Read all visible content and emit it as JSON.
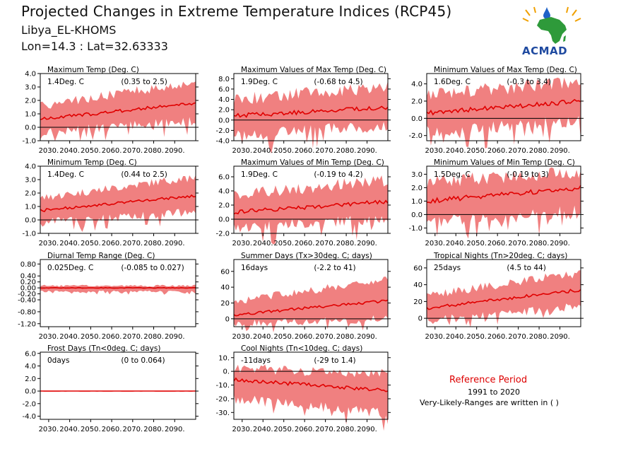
{
  "header": {
    "title": "Projected Changes in Extreme Temperature Indices (RCP45)",
    "location": "Libya_EL-KHOMS",
    "coords": "Lon=14.3 : Lat=32.63333",
    "logo_text": "ACMAD"
  },
  "reference": {
    "title": "Reference Period",
    "years": "1991 to 2020",
    "note": "Very-Likely-Ranges are written in ( )"
  },
  "colors": {
    "band": "#f08080",
    "median": "#e00000",
    "zero_line": "#000000"
  },
  "chart_data": [
    {
      "type": "area",
      "title": "Maximum Temp (Deg. C)",
      "value_label": "1.4Deg. C",
      "range_label": "(0.35 to 2.5)",
      "x_ticks": [
        "2030.",
        "2040.",
        "2050.",
        "2060.",
        "2070.",
        "2080.",
        "2090."
      ],
      "xlim": [
        2026,
        2100
      ],
      "y_ticks": [
        "4.0",
        "3.0",
        "2.0",
        "1.0",
        "0.0",
        "-1.0"
      ],
      "ylim": [
        -1.0,
        4.0
      ],
      "median_start": 0.6,
      "median_end": 1.8,
      "band_low_start": -0.4,
      "band_low_end": 0.5,
      "band_high_start": 1.6,
      "band_high_end": 3.4
    },
    {
      "type": "area",
      "title": "Maximum Values of Max Temp (Deg. C)",
      "value_label": "1.9Deg. C",
      "range_label": "(-0.68 to 4.5)",
      "x_ticks": [
        "2030.",
        "2040.",
        "2050.",
        "2060.",
        "2070.",
        "2080.",
        "2090."
      ],
      "xlim": [
        2026,
        2100
      ],
      "y_ticks": [
        "8.0",
        "6.0",
        "4.0",
        "2.0",
        "0.0",
        "-2.0",
        "-4.0"
      ],
      "ylim": [
        -4.0,
        9.0
      ],
      "median_start": 0.8,
      "median_end": 2.5,
      "band_low_start": -3.0,
      "band_low_end": -1.0,
      "band_high_start": 4.0,
      "band_high_end": 6.5
    },
    {
      "type": "area",
      "title": "Minimum Values of Max Temp (Deg. C)",
      "value_label": "1.6Deg. C",
      "range_label": "(-0.3 to 3.4)",
      "x_ticks": [
        "2030.",
        "2040.",
        "2050.",
        "2060.",
        "2070.",
        "2080.",
        "2090."
      ],
      "xlim": [
        2026,
        2100
      ],
      "y_ticks": [
        "4.0",
        "2.0",
        "0.0",
        "-2.0"
      ],
      "ylim": [
        -2.6,
        5.2
      ],
      "median_start": 0.6,
      "median_end": 2.0,
      "band_low_start": -1.5,
      "band_low_end": -0.3,
      "band_high_start": 2.8,
      "band_high_end": 4.2
    },
    {
      "type": "area",
      "title": "Minimum Temp (Deg. C)",
      "value_label": "1.4Deg. C",
      "range_label": "(0.44 to 2.5)",
      "x_ticks": [
        "2030.",
        "2040.",
        "2050.",
        "2060.",
        "2070.",
        "2080.",
        "2090."
      ],
      "xlim": [
        2026,
        2100
      ],
      "y_ticks": [
        "4.0",
        "3.0",
        "2.0",
        "1.0",
        "0.0",
        "-1.0"
      ],
      "ylim": [
        -1.0,
        4.0
      ],
      "median_start": 0.7,
      "median_end": 1.8,
      "band_low_start": -0.2,
      "band_low_end": 0.6,
      "band_high_start": 1.6,
      "band_high_end": 3.2
    },
    {
      "type": "area",
      "title": "Maximum Values of Min Temp (Deg. C)",
      "value_label": "1.9Deg. C",
      "range_label": "(-0.19 to 4.2)",
      "x_ticks": [
        "2030.",
        "2040.",
        "2050.",
        "2060.",
        "2070.",
        "2080.",
        "2090."
      ],
      "xlim": [
        2026,
        2100
      ],
      "y_ticks": [
        "6.0",
        "4.0",
        "2.0",
        "0.0",
        "-2.0"
      ],
      "ylim": [
        -2.0,
        7.5
      ],
      "median_start": 1.0,
      "median_end": 2.5,
      "band_low_start": -1.3,
      "band_low_end": 0.0,
      "band_high_start": 3.5,
      "band_high_end": 5.5
    },
    {
      "type": "area",
      "title": "Minimum Values of Min Temp (Deg. C)",
      "value_label": "1.5Deg. C",
      "range_label": "(-0.19 to 3)",
      "x_ticks": [
        "2030.",
        "2040.",
        "2050.",
        "2060.",
        "2070.",
        "2080.",
        "2090."
      ],
      "xlim": [
        2026,
        2100
      ],
      "y_ticks": [
        "3.0",
        "2.0",
        "1.0",
        "0.0",
        "-1.0"
      ],
      "ylim": [
        -1.4,
        3.6
      ],
      "median_start": 1.0,
      "median_end": 2.0,
      "band_low_start": -0.5,
      "band_low_end": 0.2,
      "band_high_start": 2.4,
      "band_high_end": 3.2
    },
    {
      "type": "area",
      "title": "Diurnal Temp Range (Deg. C)",
      "value_label": "0.025Deg. C",
      "range_label": "(-0.085 to 0.027)",
      "x_ticks": [
        "2030.",
        "2040.",
        "2050.",
        "2060.",
        "2070.",
        "2080.",
        "2090."
      ],
      "xlim": [
        2026,
        2100
      ],
      "y_ticks": [
        "0.80",
        "0.40",
        "0.20",
        "0.00",
        "-0.20",
        "-0.40",
        "-0.80",
        "-1.20"
      ],
      "ylim": [
        -1.3,
        0.95
      ],
      "median_start": 0.0,
      "median_end": 0.0,
      "band_low_start": -0.12,
      "band_low_end": -0.12,
      "band_high_start": 0.07,
      "band_high_end": 0.07
    },
    {
      "type": "area",
      "title": "Summer Days (Tx>30deg. C; days)",
      "value_label": "16days",
      "range_label": "(-2.2 to 41)",
      "x_ticks": [
        "2030.",
        "2040.",
        "2050.",
        "2060.",
        "2070.",
        "2080.",
        "2090."
      ],
      "xlim": [
        2026,
        2100
      ],
      "y_ticks": [
        "60",
        "40",
        "20",
        "0"
      ],
      "ylim": [
        -10,
        75
      ],
      "median_start": 5,
      "median_end": 23,
      "band_low_start": -6,
      "band_low_end": 0,
      "band_high_start": 22,
      "band_high_end": 50
    },
    {
      "type": "area",
      "title": "Tropical Nights (Tn>20deg. C; days)",
      "value_label": "25days",
      "range_label": "(4.5 to 44)",
      "x_ticks": [
        "2030.",
        "2040.",
        "2050.",
        "2060.",
        "2070.",
        "2080.",
        "2090."
      ],
      "xlim": [
        2026,
        2100
      ],
      "y_ticks": [
        "60",
        "40",
        "20",
        "0"
      ],
      "ylim": [
        -10,
        70
      ],
      "median_start": 12,
      "median_end": 34,
      "band_low_start": -3,
      "band_low_end": 14,
      "band_high_start": 28,
      "band_high_end": 54
    },
    {
      "type": "area",
      "title": "Frost Days (Tn<0deg. C; days)",
      "value_label": "0days",
      "range_label": "(0 to 0.064)",
      "x_ticks": [
        "2030.",
        "2040.",
        "2050.",
        "2060.",
        "2070.",
        "2080.",
        "2090."
      ],
      "xlim": [
        2026,
        2100
      ],
      "y_ticks": [
        "6.0",
        "4.0",
        "2.0",
        "0.0",
        "-2.0",
        "-4.0"
      ],
      "ylim": [
        -4.5,
        6.2
      ],
      "median_start": 0.0,
      "median_end": 0.0,
      "band_low_start": 0.0,
      "band_low_end": 0.0,
      "band_high_start": 0.05,
      "band_high_end": 0.05
    },
    {
      "type": "area",
      "title": "Cool Nights (Tn<10deg. C; days)",
      "value_label": "-11days",
      "range_label": "(-29 to 1.4)",
      "x_ticks": [
        "2030.",
        "2040.",
        "2050.",
        "2060.",
        "2070.",
        "2080.",
        "2090."
      ],
      "xlim": [
        2026,
        2100
      ],
      "y_ticks": [
        "10.",
        "0.",
        "-10.",
        "-20.",
        "-30."
      ],
      "ylim": [
        -35,
        14
      ],
      "median_start": -6,
      "median_end": -14,
      "band_low_start": -20,
      "band_low_end": -31,
      "band_high_start": 2,
      "band_high_end": -2
    }
  ]
}
